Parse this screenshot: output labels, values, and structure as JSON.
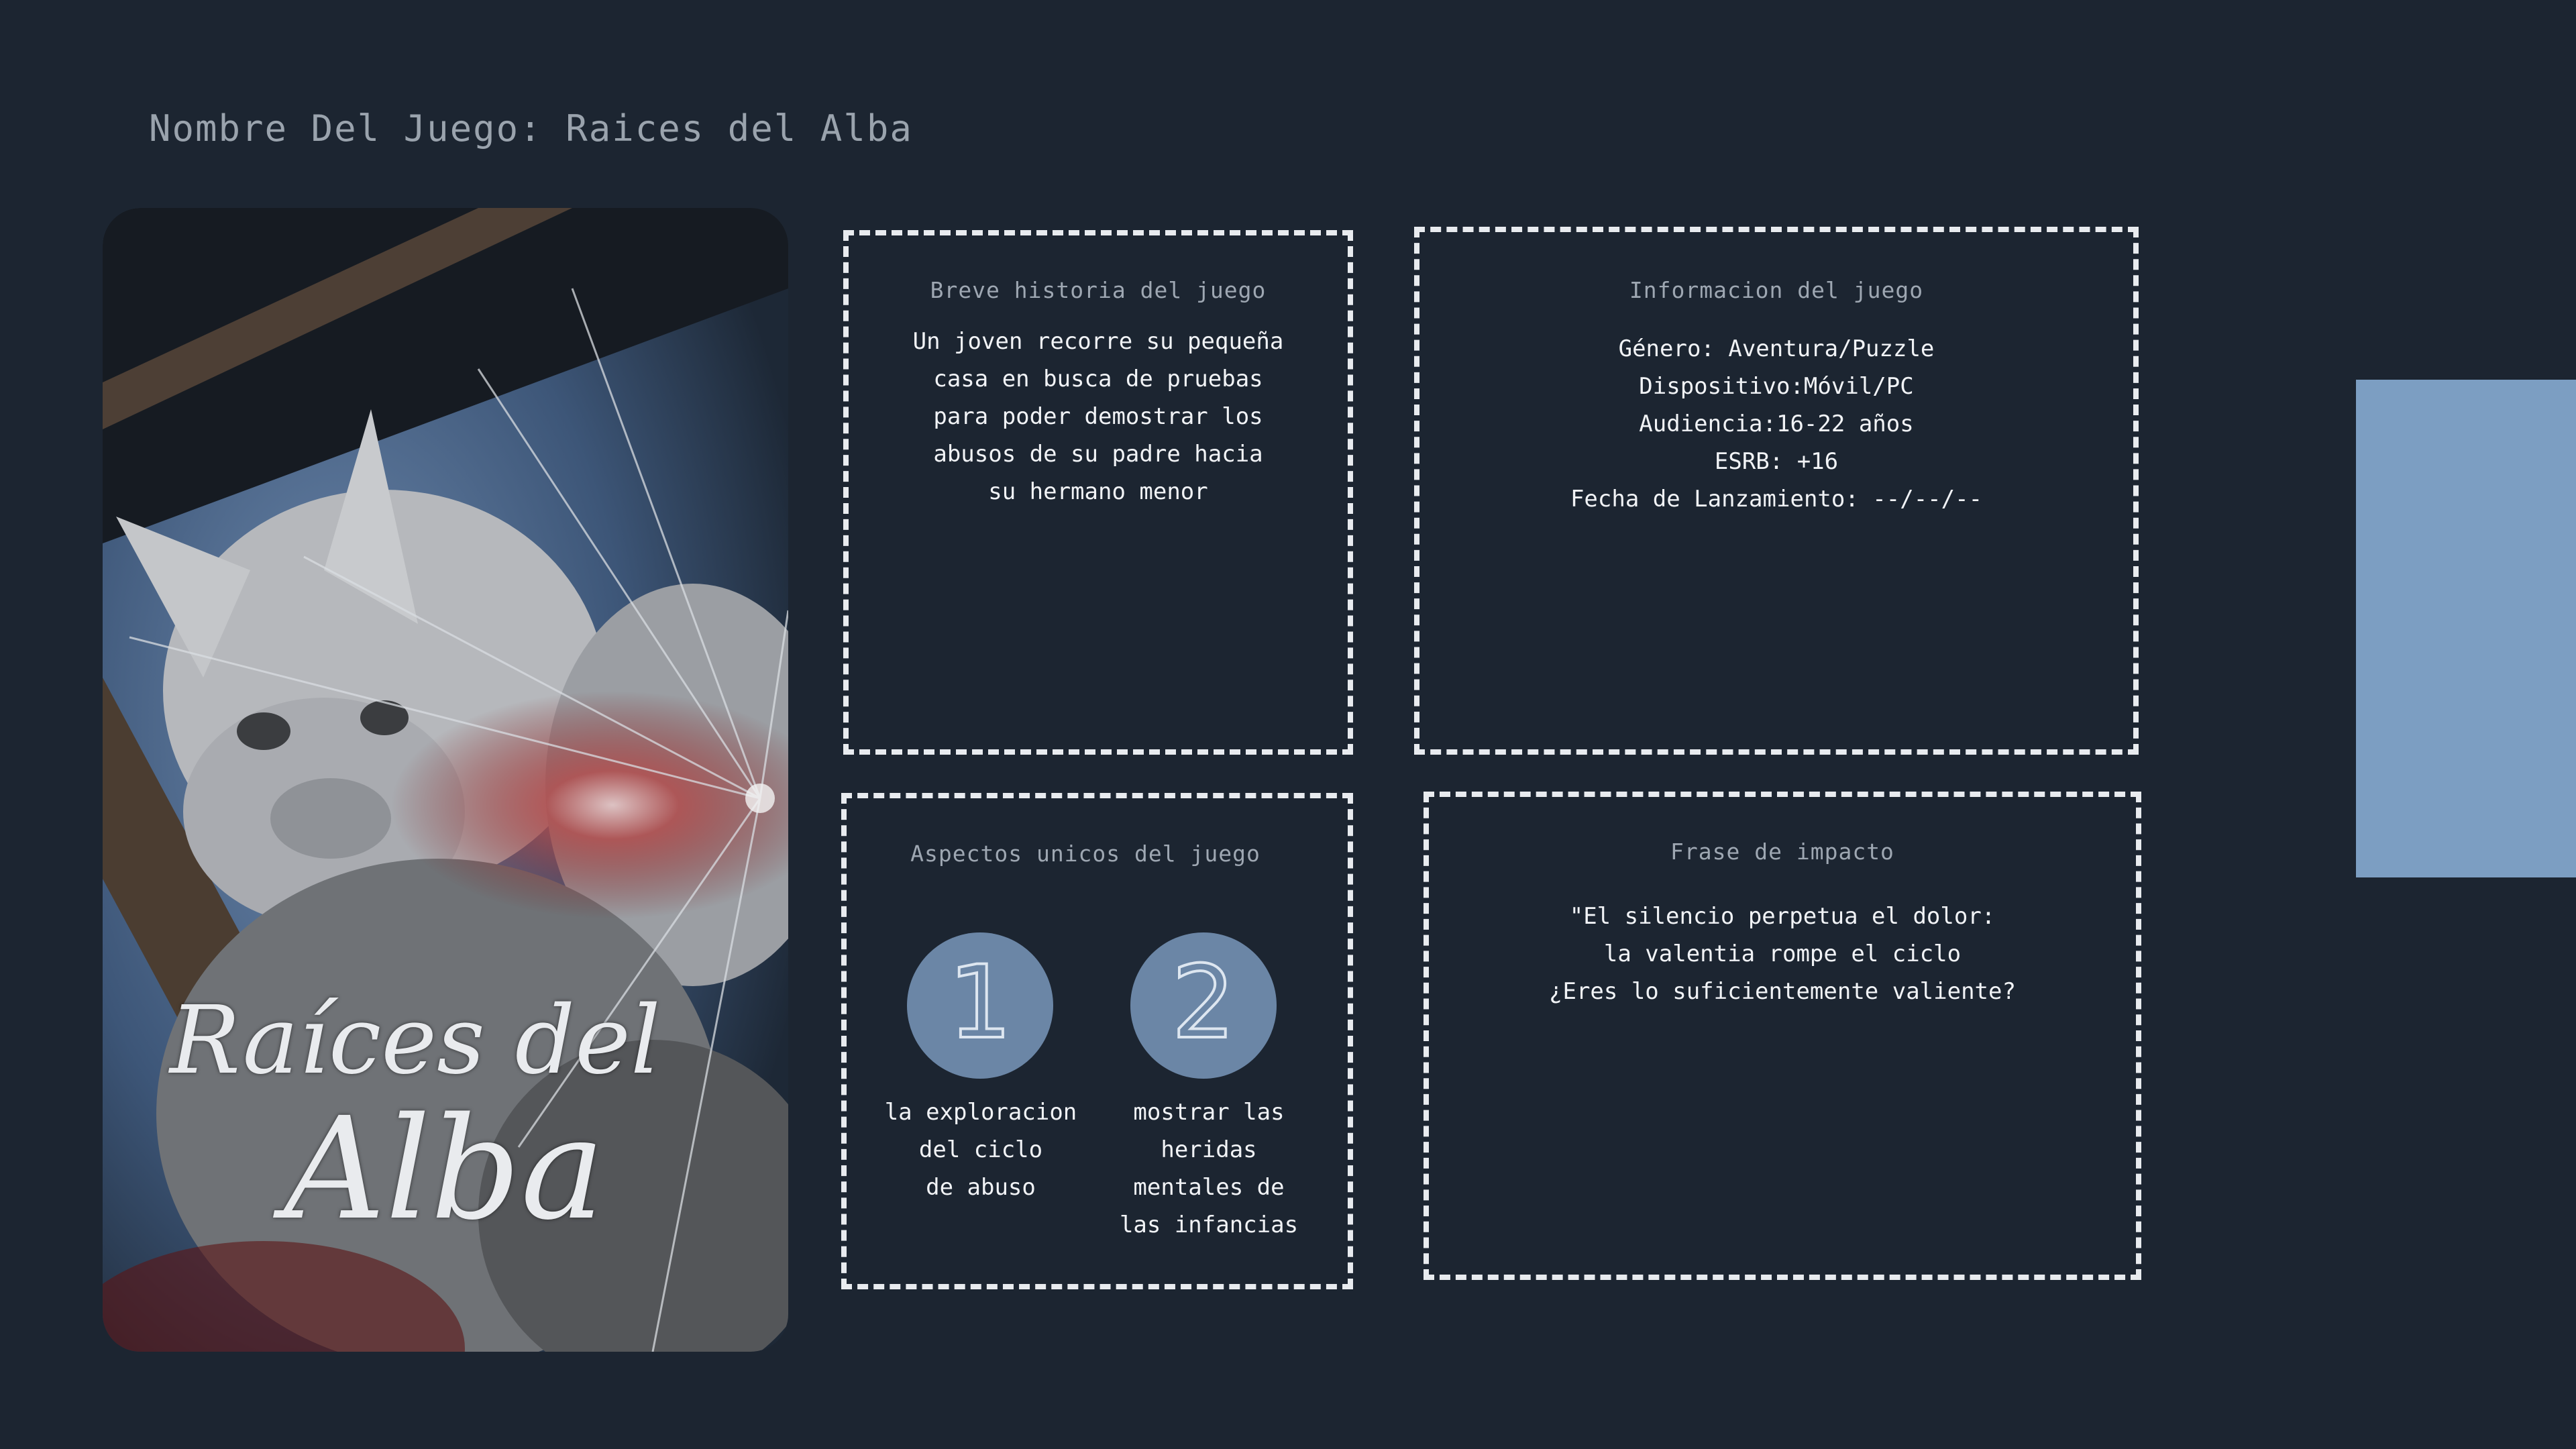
{
  "title": "Nombre Del Juego: Raices del Alba",
  "cover": {
    "title_line1": "Raíces del",
    "title_line2": "Alba"
  },
  "story": {
    "heading": "Breve historia del juego",
    "text": "Un joven recorre su pequeña\ncasa en busca de pruebas\npara poder demostrar los\nabusos de su padre hacia\nsu hermano menor"
  },
  "info": {
    "heading": "Informacion del juego",
    "lines": "Género: Aventura/Puzzle\nDispositivo:Móvil/PC\nAudiencia:16-22 años\nESRB: +16\nFecha de Lanzamiento: --/--/--"
  },
  "aspects": {
    "heading": "Aspectos unicos del juego",
    "items": [
      {
        "number": "1",
        "text": "la exploracion\ndel ciclo\nde abuso"
      },
      {
        "number": "2",
        "text": "mostrar las\nheridas\nmentales de\nlas infancias"
      }
    ]
  },
  "impact": {
    "heading": "Frase de impacto",
    "text": "\"El silencio perpetua el dolor:\nla valentia rompe el ciclo\n¿Eres lo suficientemente valiente?"
  },
  "colors": {
    "background": "#1c2531",
    "accent": "#7c9ec2",
    "number_circle": "#6b86a6"
  }
}
